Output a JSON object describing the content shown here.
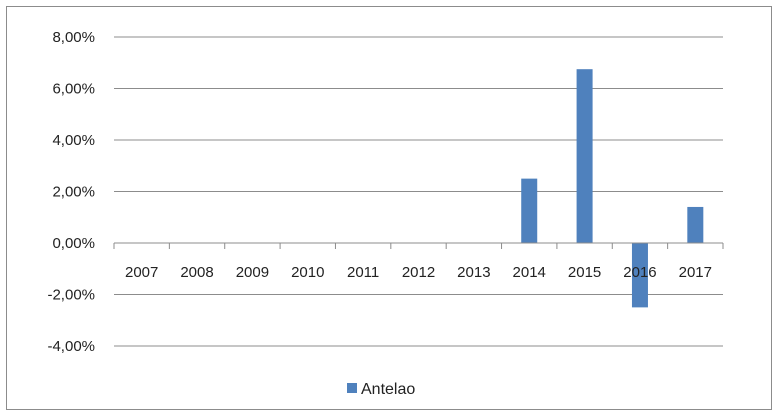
{
  "chart_data": {
    "type": "bar",
    "title": "",
    "xlabel": "",
    "ylabel": "",
    "categories": [
      "2007",
      "2008",
      "2009",
      "2010",
      "2011",
      "2012",
      "2013",
      "2014",
      "2015",
      "2016",
      "2017"
    ],
    "series": [
      {
        "name": "Antelao",
        "color": "#4f81bd",
        "values": [
          0,
          0,
          0,
          0,
          0,
          0,
          0,
          2.5,
          6.75,
          -2.5,
          1.4
        ]
      }
    ],
    "ylim": [
      -4,
      8
    ],
    "yticks": [
      8,
      6,
      4,
      2,
      0,
      -2,
      -4
    ],
    "ytick_labels": [
      "8,00%",
      "6,00%",
      "4,00%",
      "2,00%",
      "0,00%",
      "-2,00%",
      "-4,00%"
    ],
    "grid": true,
    "legend": {
      "position": "bottom",
      "label": "Antelao"
    }
  }
}
